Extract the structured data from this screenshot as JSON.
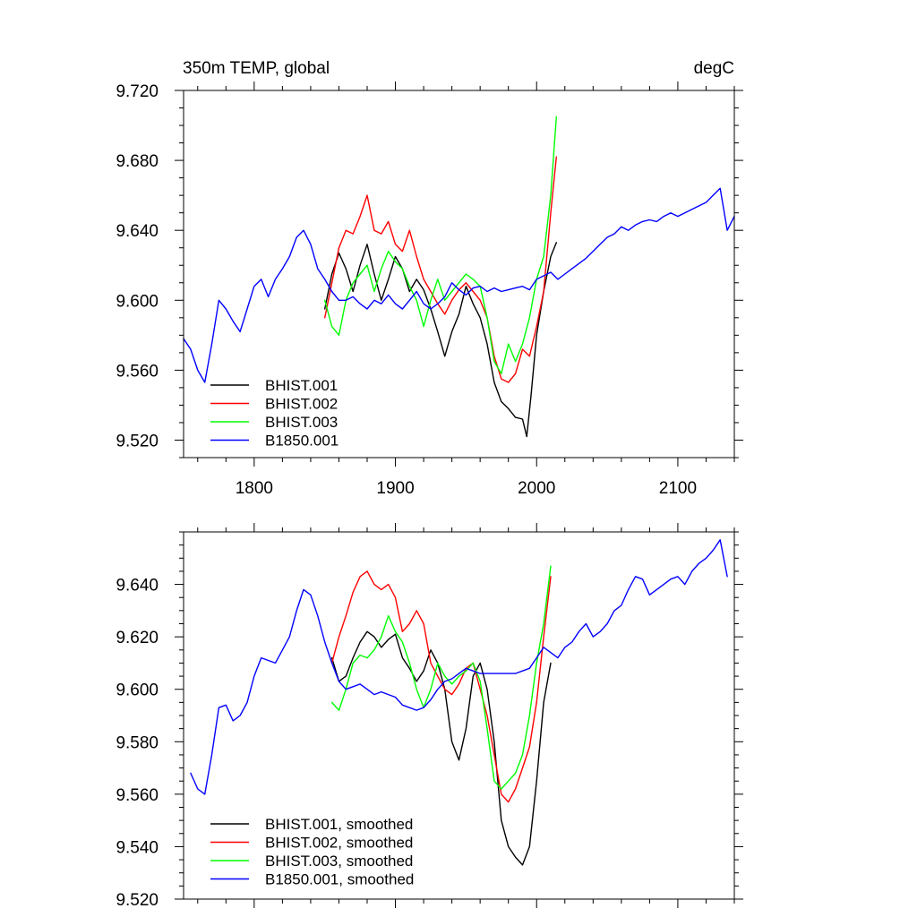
{
  "chart_data": [
    {
      "type": "line",
      "title": "350m TEMP, global",
      "units_label": "degC",
      "xlabel": "",
      "ylabel": "",
      "xlim": [
        1750,
        2140
      ],
      "ylim": [
        9.51,
        9.72
      ],
      "x_ticks": [
        1800,
        1900,
        2000,
        2100
      ],
      "x_tick_labels": [
        "1800",
        "1900",
        "2000",
        "2100"
      ],
      "y_ticks": [
        9.52,
        9.56,
        9.6,
        9.64,
        9.68,
        9.72
      ],
      "y_tick_labels": [
        "9.520",
        "9.560",
        "9.600",
        "9.640",
        "9.680",
        "9.720"
      ],
      "grid": false,
      "legend_position": "bottom-left",
      "series": [
        {
          "name": "BHIST.001",
          "color": "#000000",
          "x": [
            1850,
            1855,
            1860,
            1865,
            1870,
            1875,
            1880,
            1885,
            1890,
            1895,
            1900,
            1905,
            1910,
            1915,
            1920,
            1925,
            1930,
            1935,
            1940,
            1945,
            1950,
            1955,
            1960,
            1965,
            1970,
            1975,
            1980,
            1985,
            1990,
            1993,
            1996,
            2000,
            2005,
            2010,
            2014
          ],
          "y": [
            9.595,
            9.615,
            9.627,
            9.618,
            9.605,
            9.62,
            9.632,
            9.615,
            9.6,
            9.612,
            9.625,
            9.618,
            9.605,
            9.612,
            9.606,
            9.595,
            9.582,
            9.568,
            9.582,
            9.592,
            9.608,
            9.598,
            9.59,
            9.575,
            9.553,
            9.542,
            9.538,
            9.533,
            9.532,
            9.522,
            9.545,
            9.58,
            9.605,
            9.625,
            9.633
          ]
        },
        {
          "name": "BHIST.002",
          "color": "#ff0000",
          "x": [
            1850,
            1855,
            1860,
            1865,
            1870,
            1875,
            1880,
            1885,
            1890,
            1895,
            1900,
            1905,
            1910,
            1915,
            1920,
            1925,
            1930,
            1935,
            1940,
            1945,
            1950,
            1955,
            1960,
            1965,
            1970,
            1975,
            1980,
            1985,
            1990,
            1995,
            2000,
            2005,
            2010,
            2014
          ],
          "y": [
            9.59,
            9.61,
            9.63,
            9.64,
            9.638,
            9.648,
            9.66,
            9.64,
            9.638,
            9.645,
            9.632,
            9.628,
            9.64,
            9.625,
            9.612,
            9.605,
            9.598,
            9.592,
            9.6,
            9.606,
            9.61,
            9.605,
            9.6,
            9.59,
            9.568,
            9.555,
            9.553,
            9.558,
            9.572,
            9.568,
            9.585,
            9.605,
            9.65,
            9.682
          ]
        },
        {
          "name": "BHIST.003",
          "color": "#00ff00",
          "x": [
            1850,
            1855,
            1860,
            1865,
            1870,
            1875,
            1880,
            1885,
            1890,
            1895,
            1900,
            1905,
            1910,
            1915,
            1920,
            1925,
            1930,
            1935,
            1940,
            1945,
            1950,
            1955,
            1960,
            1965,
            1970,
            1975,
            1980,
            1985,
            1990,
            1995,
            2000,
            2005,
            2010,
            2014
          ],
          "y": [
            9.6,
            9.585,
            9.58,
            9.6,
            9.61,
            9.615,
            9.62,
            9.605,
            9.618,
            9.628,
            9.622,
            9.618,
            9.608,
            9.6,
            9.585,
            9.6,
            9.612,
            9.6,
            9.605,
            9.61,
            9.615,
            9.612,
            9.608,
            9.59,
            9.565,
            9.558,
            9.575,
            9.565,
            9.575,
            9.59,
            9.612,
            9.625,
            9.66,
            9.705
          ]
        },
        {
          "name": "B1850.001",
          "color": "#0000ff",
          "x": [
            1750,
            1755,
            1760,
            1765,
            1770,
            1775,
            1780,
            1785,
            1790,
            1795,
            1800,
            1805,
            1810,
            1815,
            1820,
            1825,
            1830,
            1835,
            1840,
            1845,
            1850,
            1855,
            1860,
            1865,
            1870,
            1875,
            1880,
            1885,
            1890,
            1895,
            1900,
            1905,
            1910,
            1915,
            1920,
            1925,
            1930,
            1935,
            1940,
            1945,
            1950,
            1955,
            1960,
            1965,
            1970,
            1975,
            1980,
            1985,
            1990,
            1995,
            2000,
            2005,
            2010,
            2015,
            2020,
            2025,
            2030,
            2035,
            2040,
            2045,
            2050,
            2055,
            2060,
            2065,
            2070,
            2075,
            2080,
            2085,
            2090,
            2095,
            2100,
            2105,
            2110,
            2115,
            2120,
            2125,
            2130,
            2135,
            2140
          ],
          "y": [
            9.578,
            9.572,
            9.56,
            9.553,
            9.575,
            9.6,
            9.595,
            9.588,
            9.582,
            9.595,
            9.608,
            9.612,
            9.602,
            9.612,
            9.618,
            9.625,
            9.636,
            9.64,
            9.632,
            9.618,
            9.612,
            9.605,
            9.6,
            9.6,
            9.602,
            9.598,
            9.595,
            9.6,
            9.598,
            9.603,
            9.598,
            9.595,
            9.6,
            9.605,
            9.598,
            9.595,
            9.598,
            9.602,
            9.61,
            9.606,
            9.603,
            9.607,
            9.608,
            9.605,
            9.607,
            9.605,
            9.606,
            9.607,
            9.608,
            9.606,
            9.612,
            9.614,
            9.616,
            9.612,
            9.615,
            9.618,
            9.621,
            9.624,
            9.628,
            9.632,
            9.636,
            9.638,
            9.642,
            9.64,
            9.643,
            9.645,
            9.646,
            9.645,
            9.648,
            9.65,
            9.648,
            9.65,
            9.652,
            9.654,
            9.656,
            9.66,
            9.664,
            9.64,
            9.648
          ]
        }
      ]
    },
    {
      "type": "line",
      "title": "",
      "xlabel": "",
      "ylabel": "",
      "xlim": [
        1750,
        2140
      ],
      "ylim": [
        9.52,
        9.66
      ],
      "x_ticks": [
        1800,
        1900,
        2000,
        2100
      ],
      "x_tick_labels": [
        "",
        "",
        "",
        ""
      ],
      "y_ticks": [
        9.52,
        9.54,
        9.56,
        9.58,
        9.6,
        9.62,
        9.64
      ],
      "y_tick_labels": [
        "9.520",
        "9.540",
        "9.560",
        "9.580",
        "9.600",
        "9.620",
        "9.640"
      ],
      "grid": false,
      "legend_position": "bottom-left",
      "series": [
        {
          "name": "BHIST.001, smoothed",
          "color": "#000000",
          "x": [
            1855,
            1860,
            1865,
            1870,
            1875,
            1880,
            1885,
            1890,
            1895,
            1900,
            1905,
            1910,
            1915,
            1920,
            1925,
            1930,
            1935,
            1940,
            1945,
            1950,
            1955,
            1960,
            1965,
            1970,
            1975,
            1980,
            1985,
            1990,
            1995,
            2000,
            2005,
            2010
          ],
          "y": [
            9.612,
            9.603,
            9.605,
            9.612,
            9.618,
            9.622,
            9.62,
            9.616,
            9.619,
            9.621,
            9.612,
            9.608,
            9.603,
            9.607,
            9.615,
            9.61,
            9.6,
            9.58,
            9.573,
            9.585,
            9.605,
            9.61,
            9.6,
            9.58,
            9.55,
            9.54,
            9.536,
            9.533,
            9.54,
            9.565,
            9.595,
            9.61
          ]
        },
        {
          "name": "BHIST.002, smoothed",
          "color": "#ff0000",
          "x": [
            1855,
            1860,
            1865,
            1870,
            1875,
            1880,
            1885,
            1890,
            1895,
            1900,
            1905,
            1910,
            1915,
            1920,
            1925,
            1930,
            1935,
            1940,
            1945,
            1950,
            1955,
            1960,
            1965,
            1970,
            1975,
            1980,
            1985,
            1990,
            1995,
            2000,
            2005,
            2010
          ],
          "y": [
            9.61,
            9.62,
            9.628,
            9.637,
            9.643,
            9.645,
            9.64,
            9.638,
            9.64,
            9.635,
            9.622,
            9.625,
            9.63,
            9.625,
            9.61,
            9.605,
            9.6,
            9.598,
            9.602,
            9.608,
            9.61,
            9.6,
            9.59,
            9.575,
            9.56,
            9.557,
            9.562,
            9.57,
            9.578,
            9.595,
            9.62,
            9.643
          ]
        },
        {
          "name": "BHIST.003, smoothed",
          "color": "#00ff00",
          "x": [
            1855,
            1860,
            1865,
            1870,
            1875,
            1880,
            1885,
            1890,
            1895,
            1900,
            1905,
            1910,
            1915,
            1920,
            1925,
            1930,
            1935,
            1940,
            1945,
            1950,
            1955,
            1960,
            1965,
            1970,
            1975,
            1980,
            1985,
            1990,
            1995,
            2000,
            2005,
            2010
          ],
          "y": [
            9.595,
            9.592,
            9.6,
            9.61,
            9.613,
            9.612,
            9.615,
            9.62,
            9.628,
            9.622,
            9.618,
            9.61,
            9.6,
            9.593,
            9.6,
            9.61,
            9.605,
            9.602,
            9.605,
            9.607,
            9.61,
            9.603,
            9.585,
            9.565,
            9.562,
            9.565,
            9.568,
            9.575,
            9.59,
            9.61,
            9.625,
            9.647
          ]
        },
        {
          "name": "B1850.001, smoothed",
          "color": "#0000ff",
          "x": [
            1755,
            1760,
            1765,
            1770,
            1775,
            1780,
            1785,
            1790,
            1795,
            1800,
            1805,
            1810,
            1815,
            1820,
            1825,
            1830,
            1835,
            1840,
            1845,
            1850,
            1855,
            1860,
            1865,
            1870,
            1875,
            1880,
            1885,
            1890,
            1895,
            1900,
            1905,
            1910,
            1915,
            1920,
            1925,
            1930,
            1935,
            1940,
            1945,
            1950,
            1955,
            1960,
            1965,
            1970,
            1975,
            1980,
            1985,
            1990,
            1995,
            2000,
            2005,
            2010,
            2015,
            2020,
            2025,
            2030,
            2035,
            2040,
            2045,
            2050,
            2055,
            2060,
            2065,
            2070,
            2075,
            2080,
            2085,
            2090,
            2095,
            2100,
            2105,
            2110,
            2115,
            2120,
            2125,
            2130,
            2135
          ],
          "y": [
            9.568,
            9.562,
            9.56,
            9.575,
            9.593,
            9.594,
            9.588,
            9.59,
            9.595,
            9.605,
            9.612,
            9.611,
            9.61,
            9.615,
            9.62,
            9.63,
            9.638,
            9.636,
            9.628,
            9.618,
            9.61,
            9.603,
            9.6,
            9.601,
            9.602,
            9.6,
            9.598,
            9.599,
            9.598,
            9.597,
            9.594,
            9.593,
            9.592,
            9.593,
            9.596,
            9.6,
            9.603,
            9.604,
            9.606,
            9.608,
            9.607,
            9.606,
            9.606,
            9.606,
            9.606,
            9.606,
            9.606,
            9.607,
            9.608,
            9.612,
            9.616,
            9.614,
            9.612,
            9.616,
            9.618,
            9.622,
            9.625,
            9.62,
            9.622,
            9.625,
            9.63,
            9.632,
            9.638,
            9.643,
            9.642,
            9.636,
            9.638,
            9.64,
            9.642,
            9.643,
            9.64,
            9.645,
            9.648,
            9.65,
            9.653,
            9.657,
            9.643
          ]
        }
      ]
    }
  ]
}
